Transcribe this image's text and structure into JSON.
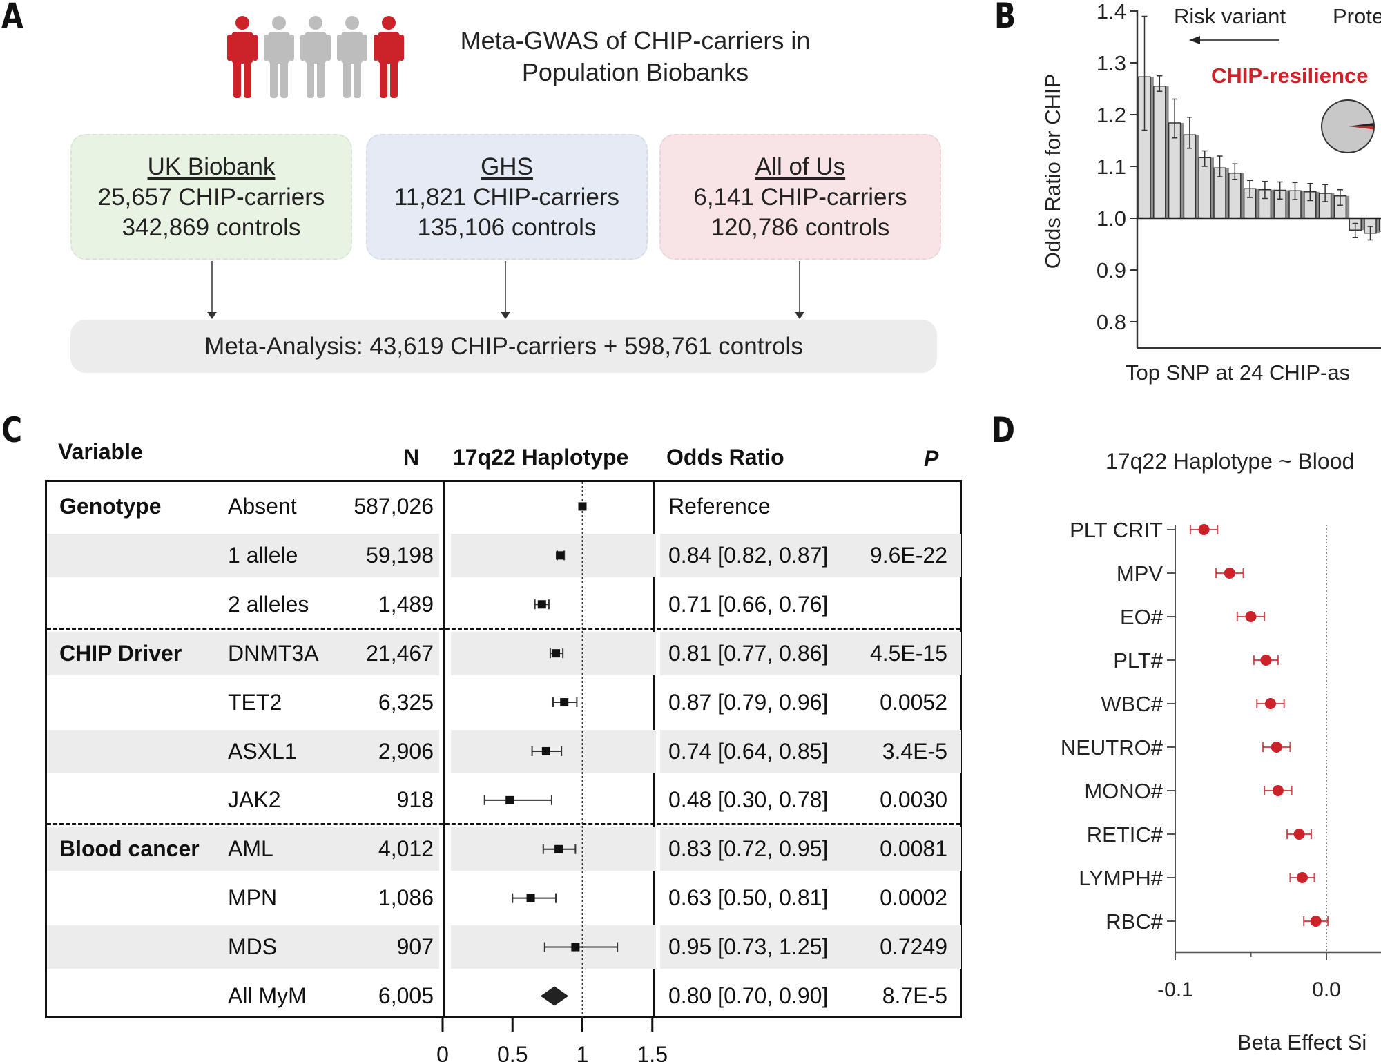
{
  "panel_a": {
    "letter": "A",
    "title_line1": "Meta-GWAS of CHIP-carriers in",
    "title_line2": "Population Biobanks",
    "people_icons": [
      {
        "icon": "person-icon",
        "color": "#cc2229"
      },
      {
        "icon": "person-icon",
        "color": "#bdbdbd"
      },
      {
        "icon": "person-icon",
        "color": "#bdbdbd"
      },
      {
        "icon": "person-icon",
        "color": "#bdbdbd"
      },
      {
        "icon": "person-icon",
        "color": "#cc2229"
      }
    ],
    "sources": [
      {
        "name": "UK Biobank",
        "carriers": "25,657 CHIP-carriers",
        "controls": "342,869 controls",
        "bg": "#e9f3e3"
      },
      {
        "name": "GHS",
        "carriers": "11,821 CHIP-carriers",
        "controls": "135,106 controls",
        "bg": "#e6eaf5"
      },
      {
        "name": "All of Us",
        "carriers": "6,141 CHIP-carriers",
        "controls": "120,786 controls",
        "bg": "#f8e3e6"
      }
    ],
    "meta": "Meta-Analysis: 43,619 CHIP-carriers + 598,761 controls"
  },
  "panel_c": {
    "letter": "C",
    "headers": {
      "variable": "Variable",
      "n": "N",
      "haplotype": "17q22 Haplotype",
      "or": "Odds Ratio",
      "p": "P"
    },
    "axis_ticks": [
      "0",
      "0.5",
      "1",
      "1.5"
    ],
    "rows": [
      {
        "group": "Genotype",
        "sub": "Absent",
        "n": "587,026",
        "or_text": "Reference",
        "p": "",
        "or": 1.0,
        "lo": 1.0,
        "hi": 1.0,
        "shade": false,
        "marker": "square"
      },
      {
        "group": "",
        "sub": "1 allele",
        "n": "59,198",
        "or_text": "0.84 [0.82, 0.87]",
        "p": "9.6E-22",
        "or": 0.84,
        "lo": 0.82,
        "hi": 0.87,
        "shade": true,
        "marker": "square"
      },
      {
        "group": "",
        "sub": "2 alleles",
        "n": "1,489",
        "or_text": "0.71 [0.66, 0.76]",
        "p": "",
        "or": 0.71,
        "lo": 0.66,
        "hi": 0.76,
        "shade": false,
        "marker": "square"
      },
      {
        "group": "CHIP Driver",
        "sub": "DNMT3A",
        "n": "21,467",
        "or_text": "0.81 [0.77, 0.86]",
        "p": "4.5E-15",
        "or": 0.81,
        "lo": 0.77,
        "hi": 0.86,
        "shade": true,
        "marker": "square"
      },
      {
        "group": "",
        "sub": "TET2",
        "n": "6,325",
        "or_text": "0.87 [0.79, 0.96]",
        "p": "0.0052",
        "or": 0.87,
        "lo": 0.79,
        "hi": 0.96,
        "shade": false,
        "marker": "square"
      },
      {
        "group": "",
        "sub": "ASXL1",
        "n": "2,906",
        "or_text": "0.74 [0.64, 0.85]",
        "p": "3.4E-5",
        "or": 0.74,
        "lo": 0.64,
        "hi": 0.85,
        "shade": true,
        "marker": "square"
      },
      {
        "group": "",
        "sub": "JAK2",
        "n": "918",
        "or_text": "0.48 [0.30, 0.78]",
        "p": "0.0030",
        "or": 0.48,
        "lo": 0.3,
        "hi": 0.78,
        "shade": false,
        "marker": "square"
      },
      {
        "group": "Blood cancer",
        "sub": "AML",
        "n": "4,012",
        "or_text": "0.83 [0.72, 0.95]",
        "p": "0.0081",
        "or": 0.83,
        "lo": 0.72,
        "hi": 0.95,
        "shade": true,
        "marker": "square"
      },
      {
        "group": "",
        "sub": "MPN",
        "n": "1,086",
        "or_text": "0.63 [0.50, 0.81]",
        "p": "0.0002",
        "or": 0.63,
        "lo": 0.5,
        "hi": 0.81,
        "shade": false,
        "marker": "square"
      },
      {
        "group": "",
        "sub": "MDS",
        "n": "907",
        "or_text": "0.95 [0.73, 1.25]",
        "p": "0.7249",
        "or": 0.95,
        "lo": 0.73,
        "hi": 1.25,
        "shade": true,
        "marker": "square"
      },
      {
        "group": "",
        "sub": "All MyM",
        "n": "6,005",
        "or_text": "0.80 [0.70, 0.90]",
        "p": "8.7E-5",
        "or": 0.8,
        "lo": 0.7,
        "hi": 0.9,
        "shade": false,
        "marker": "diamond"
      }
    ]
  },
  "chart_data": [
    {
      "id": "panel-b",
      "type": "bar",
      "letter": "B",
      "title": "",
      "ylabel": "Odds Ratio for CHIP",
      "xlabel": "Top SNP at 24 CHIP-as",
      "ylim": [
        0.75,
        1.4
      ],
      "baseline": 1.0,
      "yticks": [
        "0.8",
        "0.9",
        "1.0",
        "1.1",
        "1.2",
        "1.3",
        "1.4"
      ],
      "yticks_values": [
        0.8,
        0.9,
        1.0,
        1.1,
        1.2,
        1.3,
        1.4
      ],
      "annotations": {
        "risk": "Risk variant",
        "protective": "Prote",
        "highlight": "CHIP-resilience",
        "highlight_color": "#cc2229"
      },
      "pie": {
        "fractions": [
          0.96,
          0.02,
          0.02
        ],
        "colors": [
          "#c8c8c8",
          "#222222",
          "#cc2229"
        ]
      },
      "values": [
        1.273,
        1.255,
        1.184,
        1.161,
        1.117,
        1.097,
        1.087,
        1.057,
        1.055,
        1.054,
        1.053,
        1.051,
        1.048,
        1.043,
        0.977,
        0.971,
        0.975
      ],
      "err_lo": [
        1.17,
        1.245,
        1.155,
        1.135,
        1.1,
        1.08,
        1.075,
        1.04,
        1.038,
        1.037,
        1.036,
        1.034,
        1.032,
        1.025,
        0.963,
        0.958,
        0.962
      ],
      "err_hi": [
        1.39,
        1.275,
        1.23,
        1.195,
        1.13,
        1.12,
        1.105,
        1.073,
        1.071,
        1.07,
        1.069,
        1.067,
        1.065,
        1.055,
        0.99,
        0.984,
        0.988
      ]
    },
    {
      "id": "panel-d",
      "type": "scatter",
      "letter": "D",
      "title": "17q22 Haplotype ~ Blood",
      "xlabel": "Beta Effect Si",
      "xlim": [
        -0.1,
        0.0
      ],
      "xticks": [
        "-0.1",
        "0.0"
      ],
      "xticks_values": [
        -0.1,
        0.0
      ],
      "minor_ticks": [
        -0.05
      ],
      "reference_line": 0.0,
      "color": "#cc2229",
      "categories": [
        "PLT CRIT",
        "MPV",
        "EO#",
        "PLT#",
        "WBC#",
        "NEUTRO#",
        "MONO#",
        "RETIC#",
        "LYMPH#",
        "RBC#"
      ],
      "values": [
        -0.081,
        -0.064,
        -0.05,
        -0.04,
        -0.037,
        -0.033,
        -0.032,
        -0.018,
        -0.016,
        -0.007
      ],
      "err": [
        0.009,
        0.009,
        0.009,
        0.008,
        0.009,
        0.009,
        0.009,
        0.008,
        0.008,
        0.008
      ]
    }
  ]
}
